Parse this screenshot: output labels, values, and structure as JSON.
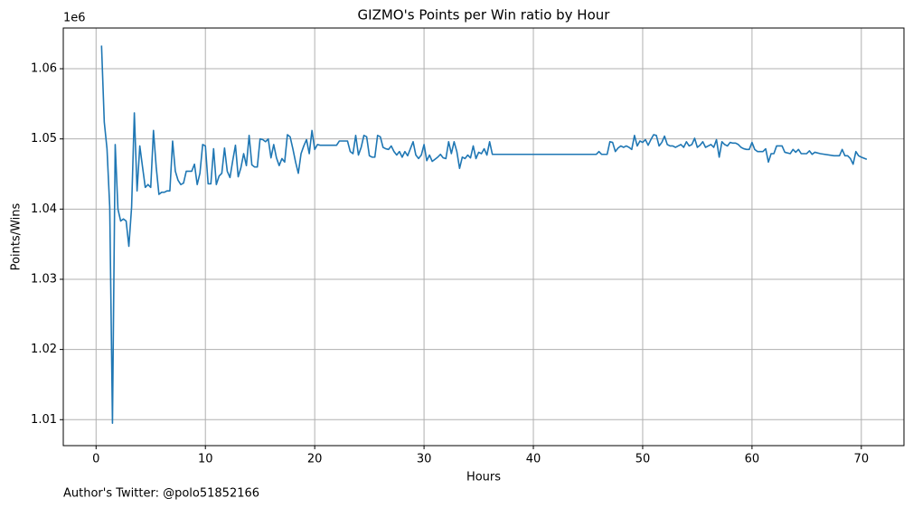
{
  "chart_data": {
    "type": "line",
    "title": "GIZMO's Points per Win ratio by Hour",
    "x_label": "Hours",
    "y_label": "Points/Wins",
    "y_offset_label": "1e6",
    "footnote": "Author's Twitter: @polo51852166",
    "color": "#1f77b4",
    "grid": true,
    "xlim": [
      -3.0,
      73.9
    ],
    "ylim": [
      1.0063,
      1.0658
    ],
    "xticks": [
      0,
      10,
      20,
      30,
      40,
      50,
      60,
      70
    ],
    "yticks": [
      1.01,
      1.02,
      1.03,
      1.04,
      1.05,
      1.06
    ],
    "x": [
      0.5,
      0.75,
      1,
      1.25,
      1.5,
      1.75,
      2,
      2.25,
      2.5,
      2.75,
      3,
      3.25,
      3.5,
      3.75,
      4,
      4.25,
      4.5,
      4.75,
      5,
      5.25,
      5.5,
      5.75,
      6,
      6.25,
      6.5,
      6.75,
      7,
      7.25,
      7.5,
      7.75,
      8,
      8.25,
      8.5,
      8.75,
      9,
      9.25,
      9.5,
      9.75,
      10,
      10.25,
      10.5,
      10.75,
      11,
      11.25,
      11.5,
      11.75,
      12,
      12.25,
      12.5,
      12.75,
      13,
      13.25,
      13.5,
      13.75,
      14,
      14.25,
      14.5,
      14.75,
      15,
      15.25,
      15.5,
      15.75,
      16,
      16.25,
      16.5,
      16.75,
      17,
      17.25,
      17.5,
      17.75,
      18,
      18.25,
      18.5,
      18.75,
      19,
      19.25,
      19.5,
      19.75,
      20,
      20.25,
      20.5,
      22,
      22.25,
      23,
      23.25,
      23.5,
      23.75,
      24,
      24.25,
      24.5,
      24.75,
      25,
      25.25,
      25.5,
      25.75,
      26,
      26.25,
      26.5,
      26.75,
      27,
      27.25,
      27.5,
      27.75,
      28,
      28.25,
      28.5,
      28.75,
      29,
      29.25,
      29.5,
      29.75,
      30,
      30.25,
      30.5,
      30.75,
      31,
      31.25,
      31.5,
      31.75,
      32,
      32.25,
      32.5,
      32.75,
      33,
      33.25,
      33.5,
      33.75,
      34,
      34.25,
      34.5,
      34.75,
      35,
      35.25,
      35.5,
      35.75,
      36,
      36.25,
      45.75,
      46,
      46.25,
      46.75,
      47,
      47.25,
      47.5,
      47.75,
      48,
      48.25,
      48.5,
      48.75,
      49,
      49.25,
      49.5,
      49.75,
      50,
      50.25,
      50.5,
      50.75,
      51,
      51.25,
      51.5,
      51.75,
      52,
      52.25,
      52.5,
      52.75,
      53,
      53.25,
      53.5,
      53.75,
      54,
      54.25,
      54.5,
      54.75,
      55,
      55.25,
      55.5,
      55.75,
      56,
      56.25,
      56.5,
      56.75,
      57,
      57.25,
      57.5,
      57.75,
      58,
      58.25,
      58.5,
      58.75,
      59,
      59.25,
      59.5,
      59.75,
      60,
      60.25,
      60.5,
      61,
      61.25,
      61.5,
      61.75,
      62,
      62.25,
      62.75,
      63,
      63.5,
      63.75,
      64,
      64.25,
      64.5,
      65,
      65.25,
      65.5,
      65.75,
      66.25,
      67.5,
      68,
      68.25,
      68.5,
      68.75,
      69,
      69.25,
      69.5,
      69.75,
      70,
      70.5
    ],
    "values": [
      1.0633,
      1.0524,
      1.0486,
      1.0403,
      1.0095,
      1.0492,
      1.04,
      1.0383,
      1.0386,
      1.0383,
      1.0347,
      1.0403,
      1.0537,
      1.0426,
      1.049,
      1.046,
      1.0431,
      1.0435,
      1.0431,
      1.0512,
      1.046,
      1.0421,
      1.0424,
      1.0424,
      1.0426,
      1.0426,
      1.0497,
      1.0454,
      1.0441,
      1.0435,
      1.0437,
      1.0454,
      1.0454,
      1.0454,
      1.0464,
      1.0435,
      1.0451,
      1.0492,
      1.049,
      1.0436,
      1.0436,
      1.0486,
      1.0435,
      1.0447,
      1.0451,
      1.0487,
      1.0454,
      1.0445,
      1.0469,
      1.0491,
      1.0446,
      1.0459,
      1.0479,
      1.0462,
      1.0505,
      1.0463,
      1.046,
      1.046,
      1.05,
      1.0499,
      1.0496,
      1.05,
      1.0473,
      1.0492,
      1.0473,
      1.0462,
      1.0472,
      1.0467,
      1.0506,
      1.0503,
      1.0486,
      1.0467,
      1.0451,
      1.0479,
      1.049,
      1.0499,
      1.0479,
      1.0512,
      1.0485,
      1.0492,
      1.0491,
      1.0491,
      1.0497,
      1.0497,
      1.0482,
      1.0479,
      1.0505,
      1.0477,
      1.0488,
      1.0505,
      1.0503,
      1.0476,
      1.0474,
      1.0474,
      1.0505,
      1.0503,
      1.0488,
      1.0486,
      1.0485,
      1.049,
      1.0482,
      1.0477,
      1.0482,
      1.0474,
      1.0482,
      1.0476,
      1.0486,
      1.0496,
      1.0477,
      1.0472,
      1.0477,
      1.0492,
      1.0469,
      1.0477,
      1.0468,
      1.0471,
      1.0474,
      1.0478,
      1.0473,
      1.0472,
      1.0496,
      1.0479,
      1.0496,
      1.0482,
      1.0458,
      1.0474,
      1.0472,
      1.0477,
      1.0473,
      1.049,
      1.0472,
      1.0481,
      1.0479,
      1.0486,
      1.0477,
      1.0496,
      1.0478,
      1.0478,
      1.0482,
      1.0478,
      1.0478,
      1.0496,
      1.0495,
      1.0482,
      1.0487,
      1.049,
      1.0488,
      1.049,
      1.0488,
      1.0485,
      1.0505,
      1.049,
      1.0497,
      1.0495,
      1.0499,
      1.0491,
      1.0499,
      1.0506,
      1.0505,
      1.049,
      1.0495,
      1.0504,
      1.0492,
      1.049,
      1.049,
      1.0488,
      1.049,
      1.0492,
      1.0488,
      1.0496,
      1.049,
      1.0492,
      1.0501,
      1.0488,
      1.0491,
      1.0496,
      1.0488,
      1.049,
      1.0492,
      1.0488,
      1.0499,
      1.0474,
      1.0496,
      1.0492,
      1.049,
      1.0495,
      1.0494,
      1.0494,
      1.0492,
      1.0488,
      1.0486,
      1.0485,
      1.0485,
      1.0495,
      1.0485,
      1.0482,
      1.0482,
      1.0486,
      1.0467,
      1.0479,
      1.0479,
      1.049,
      1.049,
      1.0481,
      1.0479,
      1.0485,
      1.0481,
      1.0485,
      1.0479,
      1.0479,
      1.0483,
      1.0478,
      1.0481,
      1.0479,
      1.0476,
      1.0476,
      1.0485,
      1.0476,
      1.0476,
      1.0472,
      1.0464,
      1.0482,
      1.0476,
      1.0474,
      1.0471
    ]
  }
}
